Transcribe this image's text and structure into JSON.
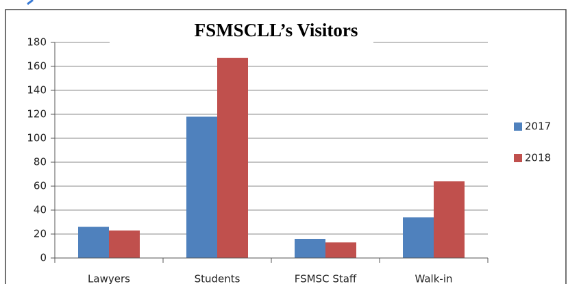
{
  "chart_data": {
    "type": "bar",
    "title": "FSMSCLL’s Visitors",
    "categories": [
      "Lawyers",
      "Students",
      "FSMSC Staff",
      "Walk-in"
    ],
    "series": [
      {
        "name": "2017",
        "color": "#4f81bd",
        "values": [
          26,
          118,
          16,
          34
        ]
      },
      {
        "name": "2018",
        "color": "#c0504d",
        "values": [
          23,
          167,
          13,
          64
        ]
      }
    ],
    "ylim": [
      0,
      180
    ],
    "yticks": [
      0,
      20,
      40,
      60,
      80,
      100,
      120,
      140,
      160,
      180
    ],
    "grid": true,
    "legend": "right"
  }
}
